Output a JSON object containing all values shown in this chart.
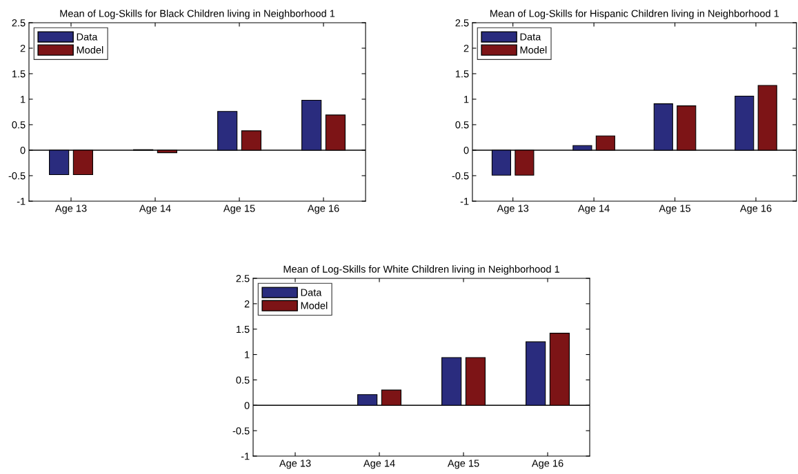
{
  "chart_data": [
    {
      "type": "bar",
      "title": "Mean of Log-Skills for Black Children living in Neighborhood 1",
      "categories": [
        "Age 13",
        "Age 14",
        "Age 15",
        "Age 16"
      ],
      "series": [
        {
          "name": "Data",
          "color": "#2a2c7e",
          "values": [
            -0.48,
            0.01,
            0.76,
            0.98
          ]
        },
        {
          "name": "Model",
          "color": "#7d1416",
          "values": [
            -0.48,
            -0.05,
            0.38,
            0.69
          ]
        }
      ],
      "ylim": [
        -1,
        2.5
      ],
      "yticks": [
        -1,
        -0.5,
        0,
        0.5,
        1,
        1.5,
        2,
        2.5
      ],
      "ref_lines": [
        {
          "axis": "y",
          "value": 0,
          "color": "#000000"
        }
      ],
      "legend": "top left",
      "grid": false
    },
    {
      "type": "bar",
      "title": "Mean of Log-Skills for Hispanic Children living in Neighborhood 1",
      "categories": [
        "Age 13",
        "Age 14",
        "Age 15",
        "Age 16"
      ],
      "series": [
        {
          "name": "Data",
          "color": "#2a2c7e",
          "values": [
            -0.49,
            0.09,
            0.91,
            1.06
          ]
        },
        {
          "name": "Model",
          "color": "#7d1416",
          "values": [
            -0.49,
            0.28,
            0.87,
            1.27
          ]
        }
      ],
      "ylim": [
        -1,
        2.5
      ],
      "yticks": [
        -1,
        -0.5,
        0,
        0.5,
        1,
        1.5,
        2,
        2.5
      ],
      "ref_lines": [
        {
          "axis": "y",
          "value": 0,
          "color": "#000000"
        }
      ],
      "legend": "top left",
      "grid": false
    },
    {
      "type": "bar",
      "title": "Mean of Log-Skills for White Children living in Neighborhood 1",
      "categories": [
        "Age 13",
        "Age 14",
        "Age 15",
        "Age 16"
      ],
      "series": [
        {
          "name": "Data",
          "color": "#2a2c7e",
          "values": [
            null,
            0.21,
            0.94,
            1.25
          ]
        },
        {
          "name": "Model",
          "color": "#7d1416",
          "values": [
            null,
            0.3,
            0.94,
            1.42
          ]
        }
      ],
      "ylim": [
        -1,
        2.5
      ],
      "yticks": [
        -1,
        -0.5,
        0,
        0.5,
        1,
        1.5,
        2,
        2.5
      ],
      "ref_lines": [
        {
          "axis": "y",
          "value": 0,
          "color": "#000000"
        }
      ],
      "legend": "top left",
      "grid": false
    }
  ]
}
